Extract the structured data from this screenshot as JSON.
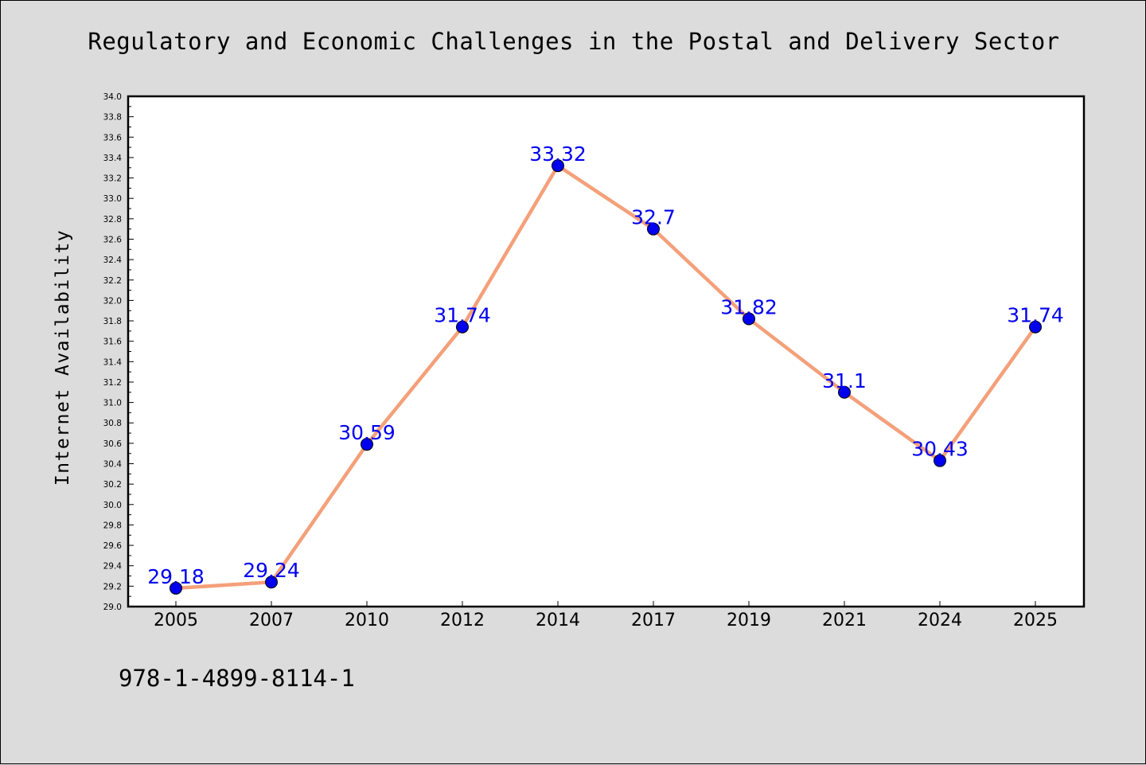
{
  "page": {
    "title": "Regulatory and Economic Challenges in the Postal and Delivery Sector",
    "footer_text": "978-1-4899-8114-1"
  },
  "colors": {
    "background": "#dcdcdc",
    "plot_background": "#ffffff",
    "line": "#f4a07a",
    "marker": "#0000ee",
    "label": "#0000ee"
  },
  "chart_data": {
    "type": "line",
    "title": "Regulatory and Economic Challenges in the Postal and Delivery Sector",
    "xlabel": "",
    "ylabel": "Internet Availability",
    "ylim": [
      29.0,
      34.0
    ],
    "y_ticks": [
      "29.0",
      "29.2",
      "29.4",
      "29.6",
      "29.8",
      "30.0",
      "30.2",
      "30.4",
      "30.6",
      "30.8",
      "31.0",
      "31.2",
      "31.4",
      "31.6",
      "31.8",
      "32.0",
      "32.2",
      "32.4",
      "32.6",
      "32.8",
      "33.0",
      "33.2",
      "33.4",
      "33.6",
      "33.8",
      "34.0"
    ],
    "categories": [
      "2005",
      "2007",
      "2010",
      "2012",
      "2014",
      "2017",
      "2019",
      "2021",
      "2024",
      "2025"
    ],
    "series": [
      {
        "values": [
          29.18,
          29.24,
          30.59,
          31.74,
          33.32,
          32.7,
          31.82,
          31.1,
          30.43,
          31.74
        ],
        "labels": [
          "29.18",
          "29.24",
          "30.59",
          "31.74",
          "33.32",
          "32.7",
          "31.82",
          "31.1",
          "30.43",
          "31.74"
        ]
      }
    ],
    "grid": false,
    "legend": "none"
  }
}
